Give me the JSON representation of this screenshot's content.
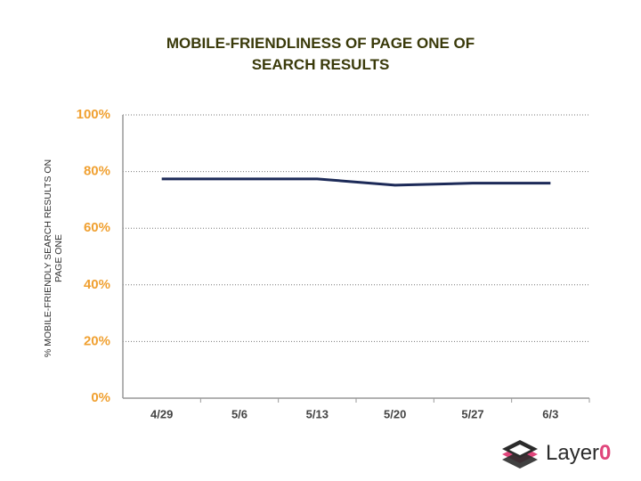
{
  "chart_data": {
    "type": "line",
    "title": "MOBILE-FRIENDLINESS OF PAGE ONE OF SEARCH RESULTS",
    "y_label": "% MOBILE-FRIENDLY SEARCH RESULTS ON PAGE ONE",
    "categories": [
      "4/29",
      "5/6",
      "5/13",
      "5/20",
      "5/27",
      "6/3"
    ],
    "series": [
      {
        "color": "#1c2a58",
        "values": [
          77.4,
          77.4,
          77.4,
          75.2,
          75.9,
          75.9
        ]
      }
    ],
    "ylim": [
      0,
      100
    ],
    "yticks": [
      {
        "value": 0,
        "label": "0%"
      },
      {
        "value": 20,
        "label": "20%"
      },
      {
        "value": 40,
        "label": "40%"
      },
      {
        "value": 60,
        "label": "60%"
      },
      {
        "value": 80,
        "label": "80%"
      },
      {
        "value": 100,
        "label": "100%"
      }
    ],
    "grid": true
  },
  "logo": [
    "Layer",
    "0"
  ]
}
